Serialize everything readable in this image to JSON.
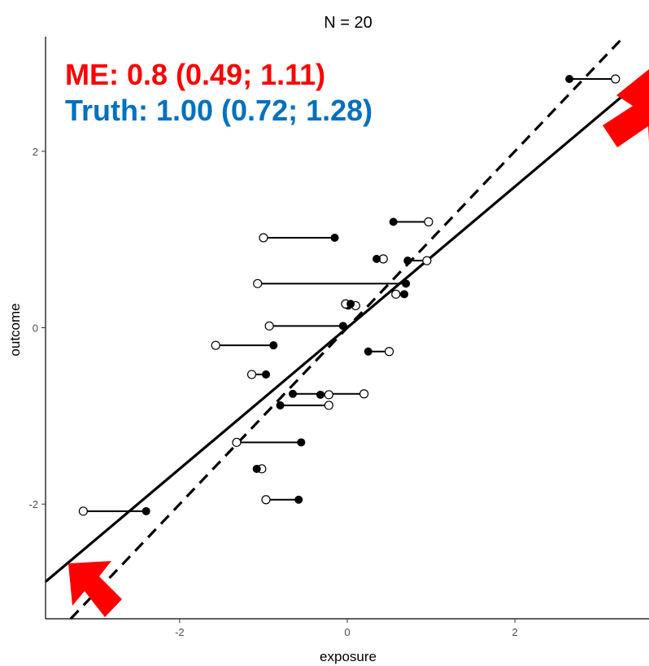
{
  "chart_data": {
    "type": "scatter",
    "title": "N = 20",
    "xlabel": "exposure",
    "ylabel": "outcome",
    "xlim": [
      -3.6,
      3.6
    ],
    "ylim": [
      -3.3,
      3.3
    ],
    "xticks": [
      -2,
      0,
      2
    ],
    "yticks": [
      -2,
      0,
      2
    ],
    "xtick_labels": [
      "-2",
      "0",
      "2"
    ],
    "ytick_labels": [
      "-2",
      "0",
      "2"
    ],
    "grid": false,
    "annotations": [
      {
        "text": "ME: 0.8 (0.49; 1.11)",
        "color": "#ff0000"
      },
      {
        "text": "Truth: 1.00 (0.72; 1.28)",
        "color": "#0070c0"
      }
    ],
    "fitted_lines": [
      {
        "style": "solid",
        "slope": 0.8,
        "intercept": 0.0
      },
      {
        "style": "dashed",
        "slope": 1.0,
        "intercept": 0.0
      }
    ],
    "pairs": [
      {
        "filled_x": -2.4,
        "open_x": -3.15,
        "y": -2.08
      },
      {
        "filled_x": -0.58,
        "open_x": -0.97,
        "y": -1.95
      },
      {
        "filled_x": -1.08,
        "open_x": -1.02,
        "y": -1.6
      },
      {
        "filled_x": -0.55,
        "open_x": -1.32,
        "y": -1.3
      },
      {
        "filled_x": -0.8,
        "open_x": -0.22,
        "y": -0.88
      },
      {
        "filled_x": -0.65,
        "open_x": 0.2,
        "y": -0.75
      },
      {
        "filled_x": -0.32,
        "open_x": -0.22,
        "y": -0.76
      },
      {
        "filled_x": -0.97,
        "open_x": -1.14,
        "y": -0.53
      },
      {
        "filled_x": -0.88,
        "open_x": -1.57,
        "y": -0.2
      },
      {
        "filled_x": 0.25,
        "open_x": 0.5,
        "y": -0.27
      },
      {
        "filled_x": -0.05,
        "open_x": -0.93,
        "y": 0.02
      },
      {
        "filled_x": 0.01,
        "open_x": 0.1,
        "y": 0.25
      },
      {
        "filled_x": 0.04,
        "open_x": -0.02,
        "y": 0.27
      },
      {
        "filled_x": 0.68,
        "open_x": 0.58,
        "y": 0.38
      },
      {
        "filled_x": 0.7,
        "open_x": -1.07,
        "y": 0.5
      },
      {
        "filled_x": 0.72,
        "open_x": 0.95,
        "y": 0.76
      },
      {
        "filled_x": 0.35,
        "open_x": 0.43,
        "y": 0.78
      },
      {
        "filled_x": -0.15,
        "open_x": -1.0,
        "y": 1.02
      },
      {
        "filled_x": 0.55,
        "open_x": 0.97,
        "y": 1.2
      },
      {
        "filled_x": 2.65,
        "open_x": 3.2,
        "y": 2.82
      }
    ]
  }
}
